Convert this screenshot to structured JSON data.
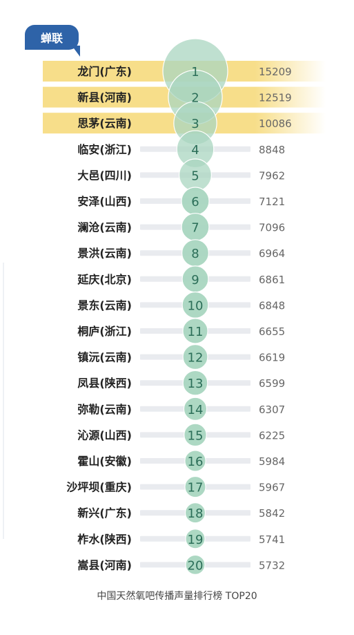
{
  "badge": {
    "label": "蝉联"
  },
  "caption": "中国天然氧吧传播声量排行榜 TOP20",
  "colors": {
    "highlight": "#f7de8a",
    "bubble": "#a9d6c0",
    "bubble_text": "#2b6e58",
    "track": "#e9ebef",
    "name": "#222222",
    "value": "#666666"
  },
  "chart_data": {
    "type": "bar",
    "highlighted_ranks": [
      1,
      2,
      3
    ],
    "items": [
      {
        "rank": "1",
        "name": "龙门(广东)",
        "value": 15209
      },
      {
        "rank": "2",
        "name": "新县(河南)",
        "value": 12519
      },
      {
        "rank": "3",
        "name": "思茅(云南)",
        "value": 10086
      },
      {
        "rank": "4",
        "name": "临安(浙江)",
        "value": 8848
      },
      {
        "rank": "5",
        "name": "大邑(四川)",
        "value": 7962
      },
      {
        "rank": "6",
        "name": "安泽(山西)",
        "value": 7121
      },
      {
        "rank": "7",
        "name": "澜沧(云南)",
        "value": 7096
      },
      {
        "rank": "8",
        "name": "景洪(云南)",
        "value": 6964
      },
      {
        "rank": "9",
        "name": "延庆(北京)",
        "value": 6861
      },
      {
        "rank": "10",
        "name": "景东(云南)",
        "value": 6848
      },
      {
        "rank": "11",
        "name": "桐庐(浙江)",
        "value": 6655
      },
      {
        "rank": "12",
        "name": "镇沅(云南)",
        "value": 6619
      },
      {
        "rank": "13",
        "name": "凤县(陕西)",
        "value": 6599
      },
      {
        "rank": "14",
        "name": "弥勒(云南)",
        "value": 6307
      },
      {
        "rank": "15",
        "name": "沁源(山西)",
        "value": 6225
      },
      {
        "rank": "16",
        "name": "霍山(安徽)",
        "value": 5984
      },
      {
        "rank": "17",
        "name": "沙坪坝(重庆)",
        "value": 5967
      },
      {
        "rank": "18",
        "name": "新兴(广东)",
        "value": 5842
      },
      {
        "rank": "19",
        "name": "柞水(陕西)",
        "value": 5741
      },
      {
        "rank": "20",
        "name": "嵩县(河南)",
        "value": 5732
      }
    ]
  }
}
